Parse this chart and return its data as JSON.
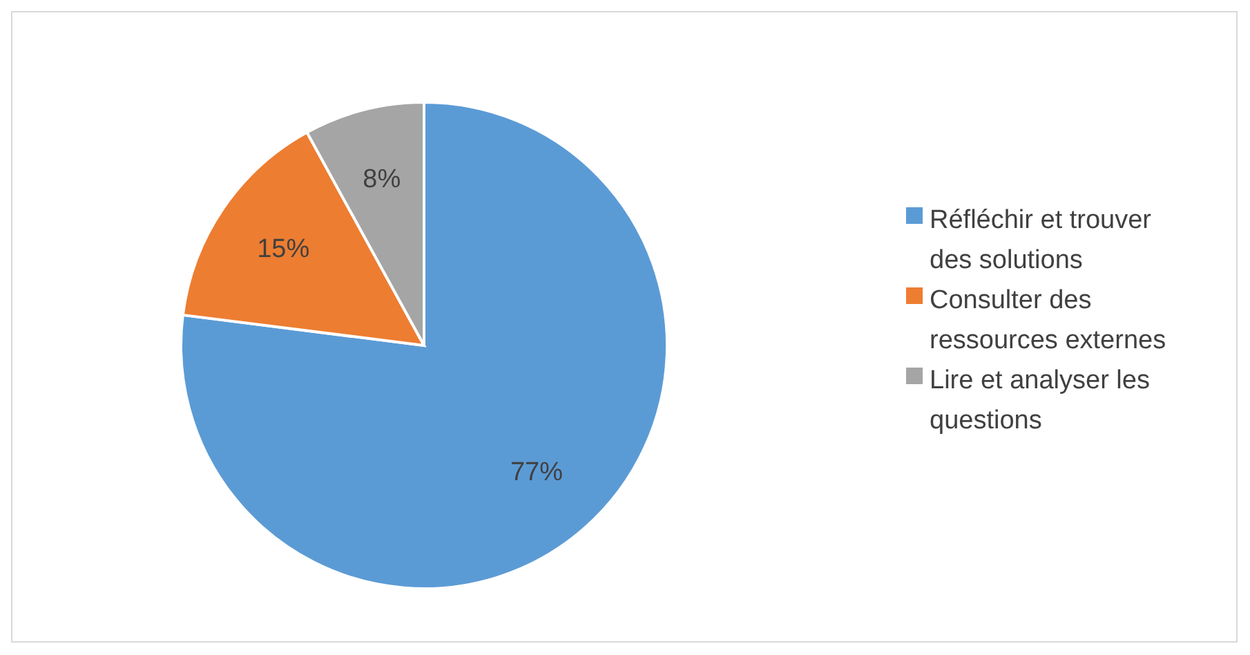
{
  "chart_data": {
    "type": "pie",
    "categories": [
      "Réfléchir et trouver des solutions",
      "Consulter des ressources externes",
      "Lire et analyser les questions"
    ],
    "values": [
      77,
      15,
      8
    ],
    "colors": [
      "#5b9bd5",
      "#ed7d31",
      "#a5a5a5"
    ],
    "value_labels": [
      "77%",
      "15%",
      "8%"
    ],
    "legend": "right"
  }
}
